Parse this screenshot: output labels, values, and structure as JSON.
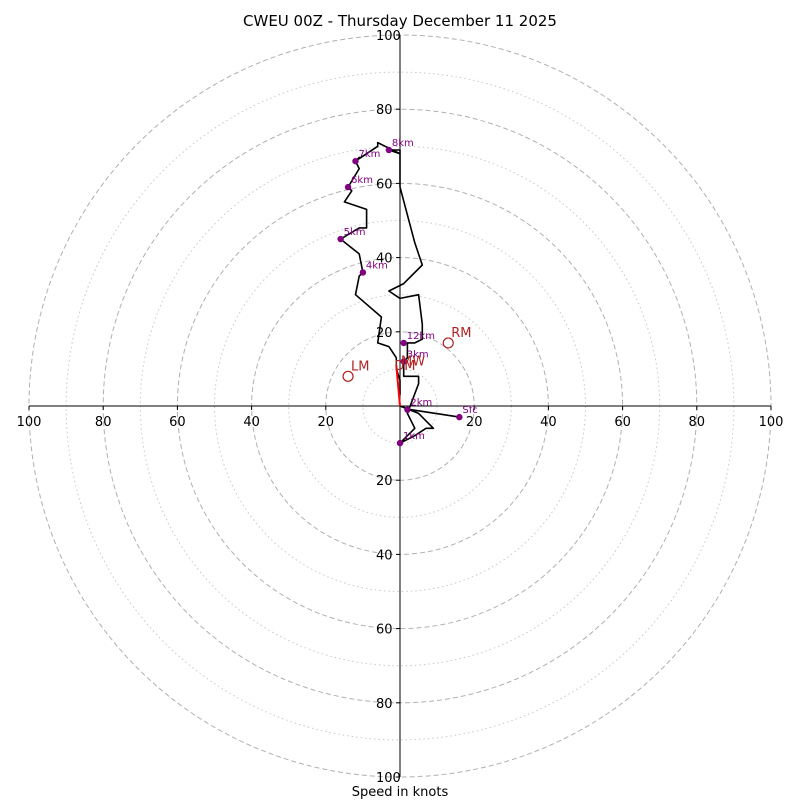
{
  "chart_data": {
    "type": "hodograph",
    "title": "CWEU 00Z - Thursday December 11 2025",
    "xlabel": "Speed in knots",
    "units": "knots",
    "max_speed": 100,
    "ring_major": [
      20,
      40,
      60,
      80,
      100
    ],
    "ring_minor": [
      10,
      30,
      50,
      70,
      90
    ],
    "axis_ticks": [
      {
        "pos": -100,
        "label": "100"
      },
      {
        "pos": -80,
        "label": "80"
      },
      {
        "pos": -60,
        "label": "60"
      },
      {
        "pos": -40,
        "label": "40"
      },
      {
        "pos": -20,
        "label": "20"
      },
      {
        "pos": 20,
        "label": "20"
      },
      {
        "pos": 40,
        "label": "40"
      },
      {
        "pos": 60,
        "label": "60"
      },
      {
        "pos": 80,
        "label": "80"
      },
      {
        "pos": 100,
        "label": "100"
      }
    ],
    "colors": {
      "trace": "#000000",
      "height_marker": "#800080",
      "motion": "#b22222",
      "shear_vector": "#ff0000",
      "ring": "#b0b0b0",
      "axis": "#000000"
    },
    "hodograph_trace": [
      [
        16,
        -3
      ],
      [
        3,
        -1
      ],
      [
        0,
        0
      ],
      [
        5,
        -2
      ],
      [
        9,
        -6
      ],
      [
        7,
        -6
      ],
      [
        4,
        -8
      ],
      [
        0,
        -10
      ],
      [
        4,
        -6
      ],
      [
        2,
        -2
      ],
      [
        5,
        6
      ],
      [
        5,
        6
      ],
      [
        5,
        8
      ],
      [
        1,
        8
      ],
      [
        1,
        12
      ],
      [
        1,
        12
      ],
      [
        2,
        13
      ],
      [
        2,
        15
      ],
      [
        2,
        17
      ],
      [
        4,
        17
      ],
      [
        6,
        18
      ],
      [
        6,
        18
      ],
      [
        6,
        18
      ],
      [
        6,
        22
      ],
      [
        5,
        30
      ],
      [
        0,
        29
      ],
      [
        -3,
        31
      ],
      [
        1,
        33
      ],
      [
        6,
        38
      ],
      [
        4,
        44
      ],
      [
        0,
        59
      ],
      [
        0,
        67
      ],
      [
        0,
        69
      ],
      [
        -3,
        69
      ],
      [
        0,
        68
      ],
      [
        -6,
        71
      ],
      [
        -6,
        70
      ],
      [
        -12,
        66
      ],
      [
        -11,
        67
      ],
      [
        -12,
        66
      ],
      [
        -11,
        64
      ],
      [
        -14,
        59
      ],
      [
        -13,
        58
      ],
      [
        -15,
        55
      ],
      [
        -9,
        53
      ],
      [
        -9,
        48
      ],
      [
        -11,
        48
      ],
      [
        -11,
        48
      ],
      [
        -16,
        45
      ],
      [
        -11,
        41
      ],
      [
        -10,
        36
      ],
      [
        -11,
        35
      ],
      [
        -12,
        30
      ],
      [
        -5,
        24
      ],
      [
        -5,
        24
      ],
      [
        -6,
        17
      ],
      [
        -3,
        16
      ],
      [
        -1,
        13
      ],
      [
        -1,
        10
      ],
      [
        0,
        7
      ],
      [
        0,
        3
      ]
    ],
    "height_markers": [
      {
        "label": "Sfc",
        "u": 16,
        "v": -3
      },
      {
        "label": "1km",
        "u": 0,
        "v": -10
      },
      {
        "label": "2km",
        "u": 2,
        "v": -1
      },
      {
        "label": "3km",
        "u": 1,
        "v": 12
      },
      {
        "label": "12km",
        "u": 1,
        "v": 17
      },
      {
        "label": "4km",
        "u": -10,
        "v": 36
      },
      {
        "label": "5km",
        "u": -16,
        "v": 45
      },
      {
        "label": "6km",
        "u": -14,
        "v": 59
      },
      {
        "label": "7km",
        "u": -12,
        "v": 66
      },
      {
        "label": "8km",
        "u": -3,
        "v": 69
      }
    ],
    "storm_motion": [
      {
        "label": "RM",
        "u": 13,
        "v": 17
      },
      {
        "label": "LM",
        "u": -14,
        "v": 8
      }
    ],
    "mean_wind": {
      "label": "MW",
      "u": 0,
      "v": 12
    },
    "deviant_motion": {
      "label": "DM",
      "u": -1,
      "v": 11
    },
    "shear_vector": {
      "u1": 0,
      "v1": 0,
      "u2": -1,
      "v2": 11
    }
  }
}
